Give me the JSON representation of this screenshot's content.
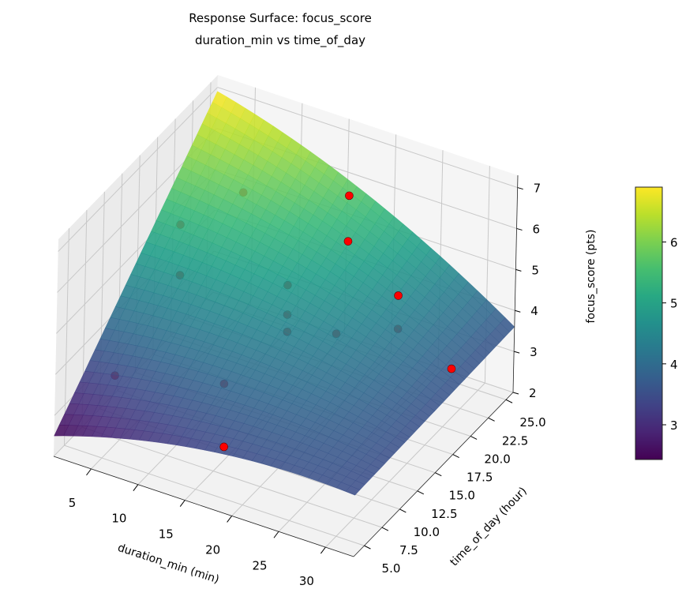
{
  "chart_data": {
    "type": "surface3d",
    "title": [
      "Response Surface: focus_score",
      "duration_min vs time_of_day"
    ],
    "xlabel": "duration_min (min)",
    "ylabel": "time_of_day (hour)",
    "zlabel": "focus_score (pts)",
    "xlim": [
      1,
      33
    ],
    "ylim": [
      3.5,
      26
    ],
    "zlim": [
      2,
      7.3
    ],
    "xticks": [
      "5",
      "10",
      "15",
      "20",
      "25",
      "30"
    ],
    "yticks": [
      "5.0",
      "7.5",
      "10.0",
      "12.5",
      "15.0",
      "17.5",
      "20.0",
      "22.5",
      "25.0"
    ],
    "zticks": [
      "2",
      "3",
      "4",
      "5",
      "6",
      "7"
    ],
    "grid": true,
    "colormap": "viridis",
    "surface_corners": {
      "xmin_ymin": 2.5,
      "xmin_ymax": 6.9,
      "xmax_ymin": 3.5,
      "xmax_ymax": 3.6
    },
    "colorbar": {
      "range": [
        2.43,
        6.9
      ],
      "ticks": [
        "3",
        "4",
        "5",
        "6"
      ]
    },
    "points": [
      {
        "x": 18.2,
        "y": 21.9,
        "z": 6.4,
        "behind_surface": false
      },
      {
        "x": 19.8,
        "y": 19.7,
        "z": 5.8,
        "behind_surface": false
      },
      {
        "x": 23.7,
        "y": 21.8,
        "z": 4.4,
        "behind_surface": false
      },
      {
        "x": 24.4,
        "y": 20.9,
        "z": 3.8,
        "behind_surface": true
      },
      {
        "x": 28.7,
        "y": 22.9,
        "z": 2.8,
        "behind_surface": false
      },
      {
        "x": 17.1,
        "y": 6.1,
        "z": 3.0,
        "behind_surface": false
      },
      {
        "x": 9.1,
        "y": 19.0,
        "z": 6.3,
        "behind_surface": true
      },
      {
        "x": 5.3,
        "y": 15.2,
        "z": 5.9,
        "behind_surface": true
      },
      {
        "x": 6.4,
        "y": 13.8,
        "z": 5.0,
        "behind_surface": true
      },
      {
        "x": 14.6,
        "y": 18.2,
        "z": 4.6,
        "behind_surface": true
      },
      {
        "x": 15.0,
        "y": 17.7,
        "z": 4.0,
        "behind_surface": true
      },
      {
        "x": 15.4,
        "y": 17.2,
        "z": 3.7,
        "behind_surface": true
      },
      {
        "x": 19.5,
        "y": 18.7,
        "z": 3.7,
        "behind_surface": true
      },
      {
        "x": 4.0,
        "y": 8.0,
        "z": 3.4,
        "behind_surface": true
      },
      {
        "x": 12.5,
        "y": 12.2,
        "z": 3.1,
        "behind_surface": true
      }
    ],
    "point_color": "#ff0000"
  }
}
